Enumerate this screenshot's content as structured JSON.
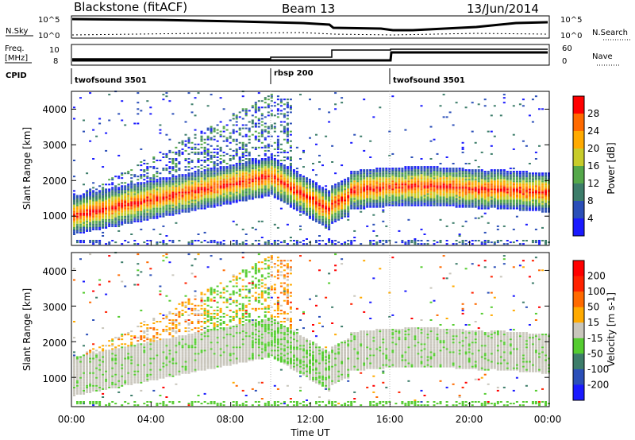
{
  "header": {
    "station": "Blackstone (fitACF)",
    "beam": "Beam 13",
    "date": "13/Jun/2014"
  },
  "status_panels": {
    "nsky_label": "N.Sky",
    "nsearch_label": "N.Search",
    "freq_label_top": "Freq.",
    "freq_label_unit": "[MHz]",
    "nave_label": "Nave",
    "cpid_label": "CPID",
    "noise_left_ticks": [
      "10^5",
      "10^0"
    ],
    "noise_right_ticks": [
      "10^5",
      "10^0"
    ],
    "freq_left_ticks": [
      "10",
      "8"
    ],
    "nave_right_ticks": [
      "60",
      "0"
    ],
    "cpid_segments": [
      {
        "name": "twofsound 3501",
        "start": 0,
        "end": 10
      },
      {
        "name": "rbsp 200",
        "start": 10,
        "end": 16
      },
      {
        "name": "twofsound 3501",
        "start": 16,
        "end": 24
      }
    ]
  },
  "chart_data": [
    {
      "type": "heatmap",
      "panel": "power",
      "ylabel": "Slant Range [km]",
      "y_ticks": [
        1000,
        2000,
        3000,
        4000
      ],
      "ylim": [
        180,
        4500
      ],
      "xlim": [
        0,
        24
      ],
      "colorbar": {
        "label": "Power [dB]",
        "ticks": [
          "4",
          "8",
          "12",
          "16",
          "20",
          "24",
          "28"
        ],
        "colors": [
          "#1a1aff",
          "#2b4fb8",
          "#3d7d6a",
          "#55a84a",
          "#c8cc2a",
          "#ffaa00",
          "#ff6a00",
          "#ff0000"
        ]
      }
    },
    {
      "type": "heatmap",
      "panel": "velocity",
      "ylabel": "Slant Range [km]",
      "xlabel": "Time UT",
      "y_ticks": [
        1000,
        2000,
        3000,
        4000
      ],
      "ylim": [
        180,
        4500
      ],
      "xlim": [
        0,
        24
      ],
      "x_ticks": [
        "00:00",
        "04:00",
        "08:00",
        "12:00",
        "16:00",
        "20:00",
        "00:00"
      ],
      "colorbar": {
        "label": "Velocity [m s-1]",
        "ticks": [
          "200",
          "100",
          "50",
          "15",
          "-15",
          "-50",
          "-100",
          "-200"
        ],
        "colors": [
          "#1a1aff",
          "#2b4fb8",
          "#3d7d6a",
          "#55cc30",
          "#c9c6bc",
          "#ffaa00",
          "#ff6a00",
          "#ff2200",
          "#ff0000"
        ]
      }
    }
  ]
}
